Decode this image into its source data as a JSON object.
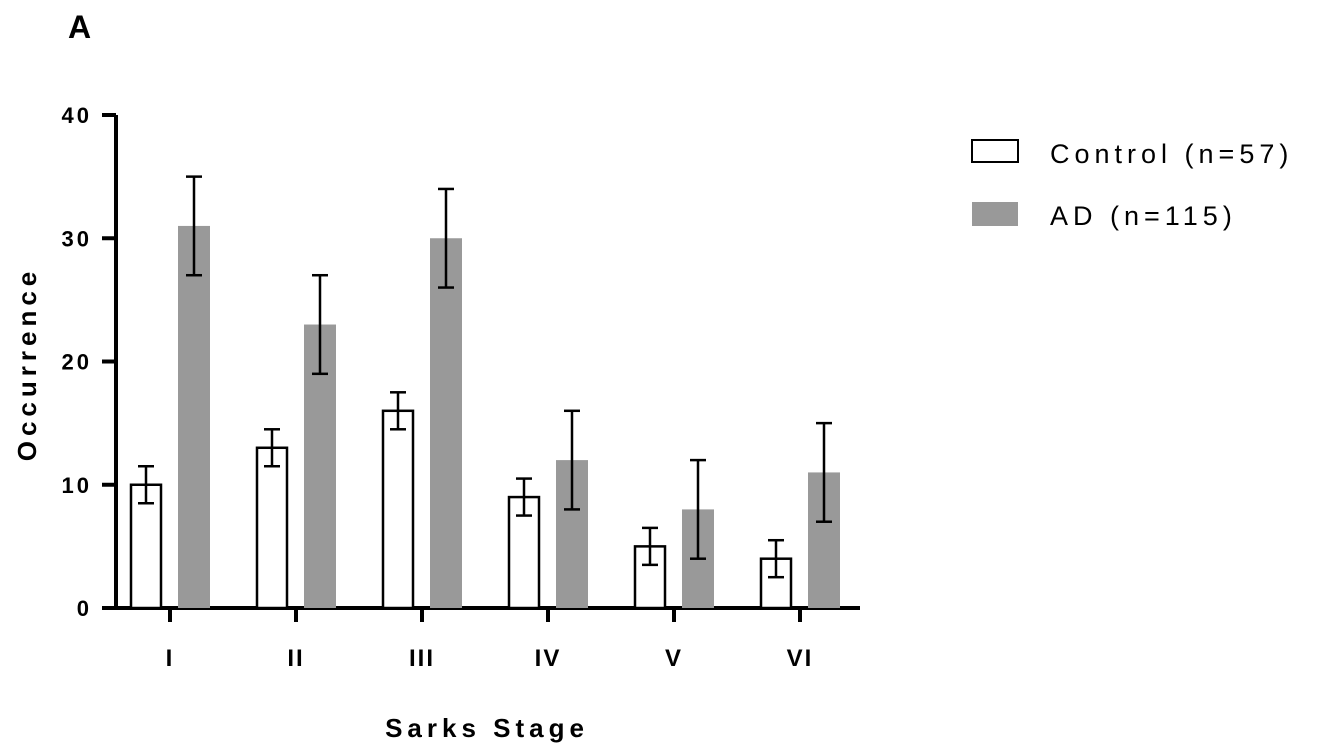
{
  "panel_label": "A",
  "chart_data": {
    "type": "bar",
    "title": "",
    "xlabel": "Sarks Stage",
    "ylabel": "Occurrence",
    "ylim": [
      0,
      40
    ],
    "yticks": [
      0,
      10,
      20,
      30,
      40
    ],
    "categories": [
      "I",
      "II",
      "III",
      "IV",
      "V",
      "VI"
    ],
    "series": [
      {
        "name": "Control (n=57)",
        "values": [
          10,
          13,
          16,
          9,
          5,
          4
        ],
        "error_low": [
          8.5,
          11.5,
          14.5,
          7.5,
          3.5,
          2.5
        ],
        "error_high": [
          11.5,
          14.5,
          17.5,
          10.5,
          6.5,
          5.5
        ],
        "fill": "#ffffff",
        "stroke": "#000000"
      },
      {
        "name": "AD (n=115)",
        "values": [
          31,
          23,
          30,
          12,
          8,
          11
        ],
        "error_low": [
          27,
          19,
          26,
          8,
          4,
          7
        ],
        "error_high": [
          35,
          27,
          34,
          16,
          12,
          15
        ],
        "fill": "#999999",
        "stroke": "none"
      }
    ],
    "legend_position": "top-right",
    "grid": false
  }
}
